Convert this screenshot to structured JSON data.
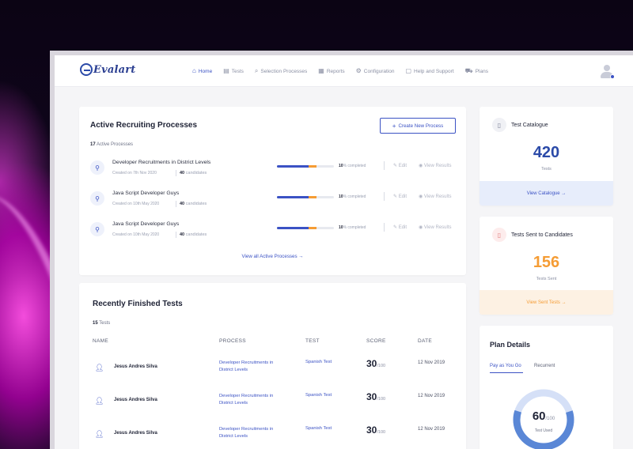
{
  "brand": {
    "name": "Evalart"
  },
  "nav": {
    "items": [
      {
        "label": "Home",
        "icon": "home-icon",
        "active": true
      },
      {
        "label": "Tests",
        "icon": "list-icon",
        "active": false
      },
      {
        "label": "Selection Processes",
        "icon": "search-icon",
        "active": false
      },
      {
        "label": "Reports",
        "icon": "report-icon",
        "active": false
      },
      {
        "label": "Configuration",
        "icon": "gear-icon",
        "active": false
      },
      {
        "label": "Help and Support",
        "icon": "help-icon",
        "active": false
      },
      {
        "label": "Plans",
        "icon": "cart-icon",
        "active": false
      }
    ]
  },
  "active_processes": {
    "title": "Active Recruiting Processes",
    "create_label": "Create New Process",
    "count": "17",
    "count_label": "Active Processes",
    "view_all_label": "View all Active Processes",
    "rows": [
      {
        "name": "Developer Recruitments in District Levels",
        "created": "Created on 7th Nov 2020",
        "candidates": "40",
        "candidates_label": "candidates",
        "percent": "10",
        "percent_label": "% completed",
        "progress_blue": 0.55,
        "progress_orange": 0.15,
        "edit": "Edit",
        "view": "View Results"
      },
      {
        "name": "Java Script Developer Guys",
        "created": "Created on 10th May 2020",
        "candidates": "40",
        "candidates_label": "candidates",
        "percent": "10",
        "percent_label": "% completed",
        "progress_blue": 0.55,
        "progress_orange": 0.15,
        "edit": "Edit",
        "view": "View Results"
      },
      {
        "name": "Java Script Developer Guys",
        "created": "Created on 10th May 2020",
        "candidates": "40",
        "candidates_label": "candidates",
        "percent": "10",
        "percent_label": "% completed",
        "progress_blue": 0.55,
        "progress_orange": 0.15,
        "edit": "Edit",
        "view": "View Results"
      }
    ]
  },
  "finished_tests": {
    "title": "Recently Finished Tests",
    "count": "15",
    "count_label": "Tests",
    "headers": {
      "name": "NAME",
      "process": "PROCESS",
      "test": "TEST",
      "score": "SCORE",
      "date": "DATE"
    },
    "rows": [
      {
        "name": "Jesus Andres Silva",
        "process": "Developer Recruitments in District Levels",
        "test": "Spanish Test",
        "score": "30",
        "score_max": "/100",
        "date": "12 Nov 2019"
      },
      {
        "name": "Jesus Andres Silva",
        "process": "Developer Recruitments in District Levels",
        "test": "Spanish Test",
        "score": "30",
        "score_max": "/100",
        "date": "12 Nov 2019"
      },
      {
        "name": "Jesus Andres Silva",
        "process": "Developer Recruitments in District Levels",
        "test": "Spanish Test",
        "score": "30",
        "score_max": "/100",
        "date": "12 Nov 2019"
      }
    ]
  },
  "catalogue": {
    "title": "Test Catalogue",
    "value": "420",
    "value_label": "Tests",
    "link_label": "View Catalogue",
    "color": "#2b4aa8"
  },
  "sent": {
    "title": "Tests Sent to Candidates",
    "value": "156",
    "value_label": "Tests Sent",
    "link_label": "View Sent Tests",
    "color": "#f59c34"
  },
  "plan": {
    "title": "Plan Details",
    "tabs": [
      "Pay as You Go",
      "Recurrent"
    ],
    "used": "60",
    "total": "/100",
    "used_label": "Test Used",
    "used_fraction": 0.6
  }
}
